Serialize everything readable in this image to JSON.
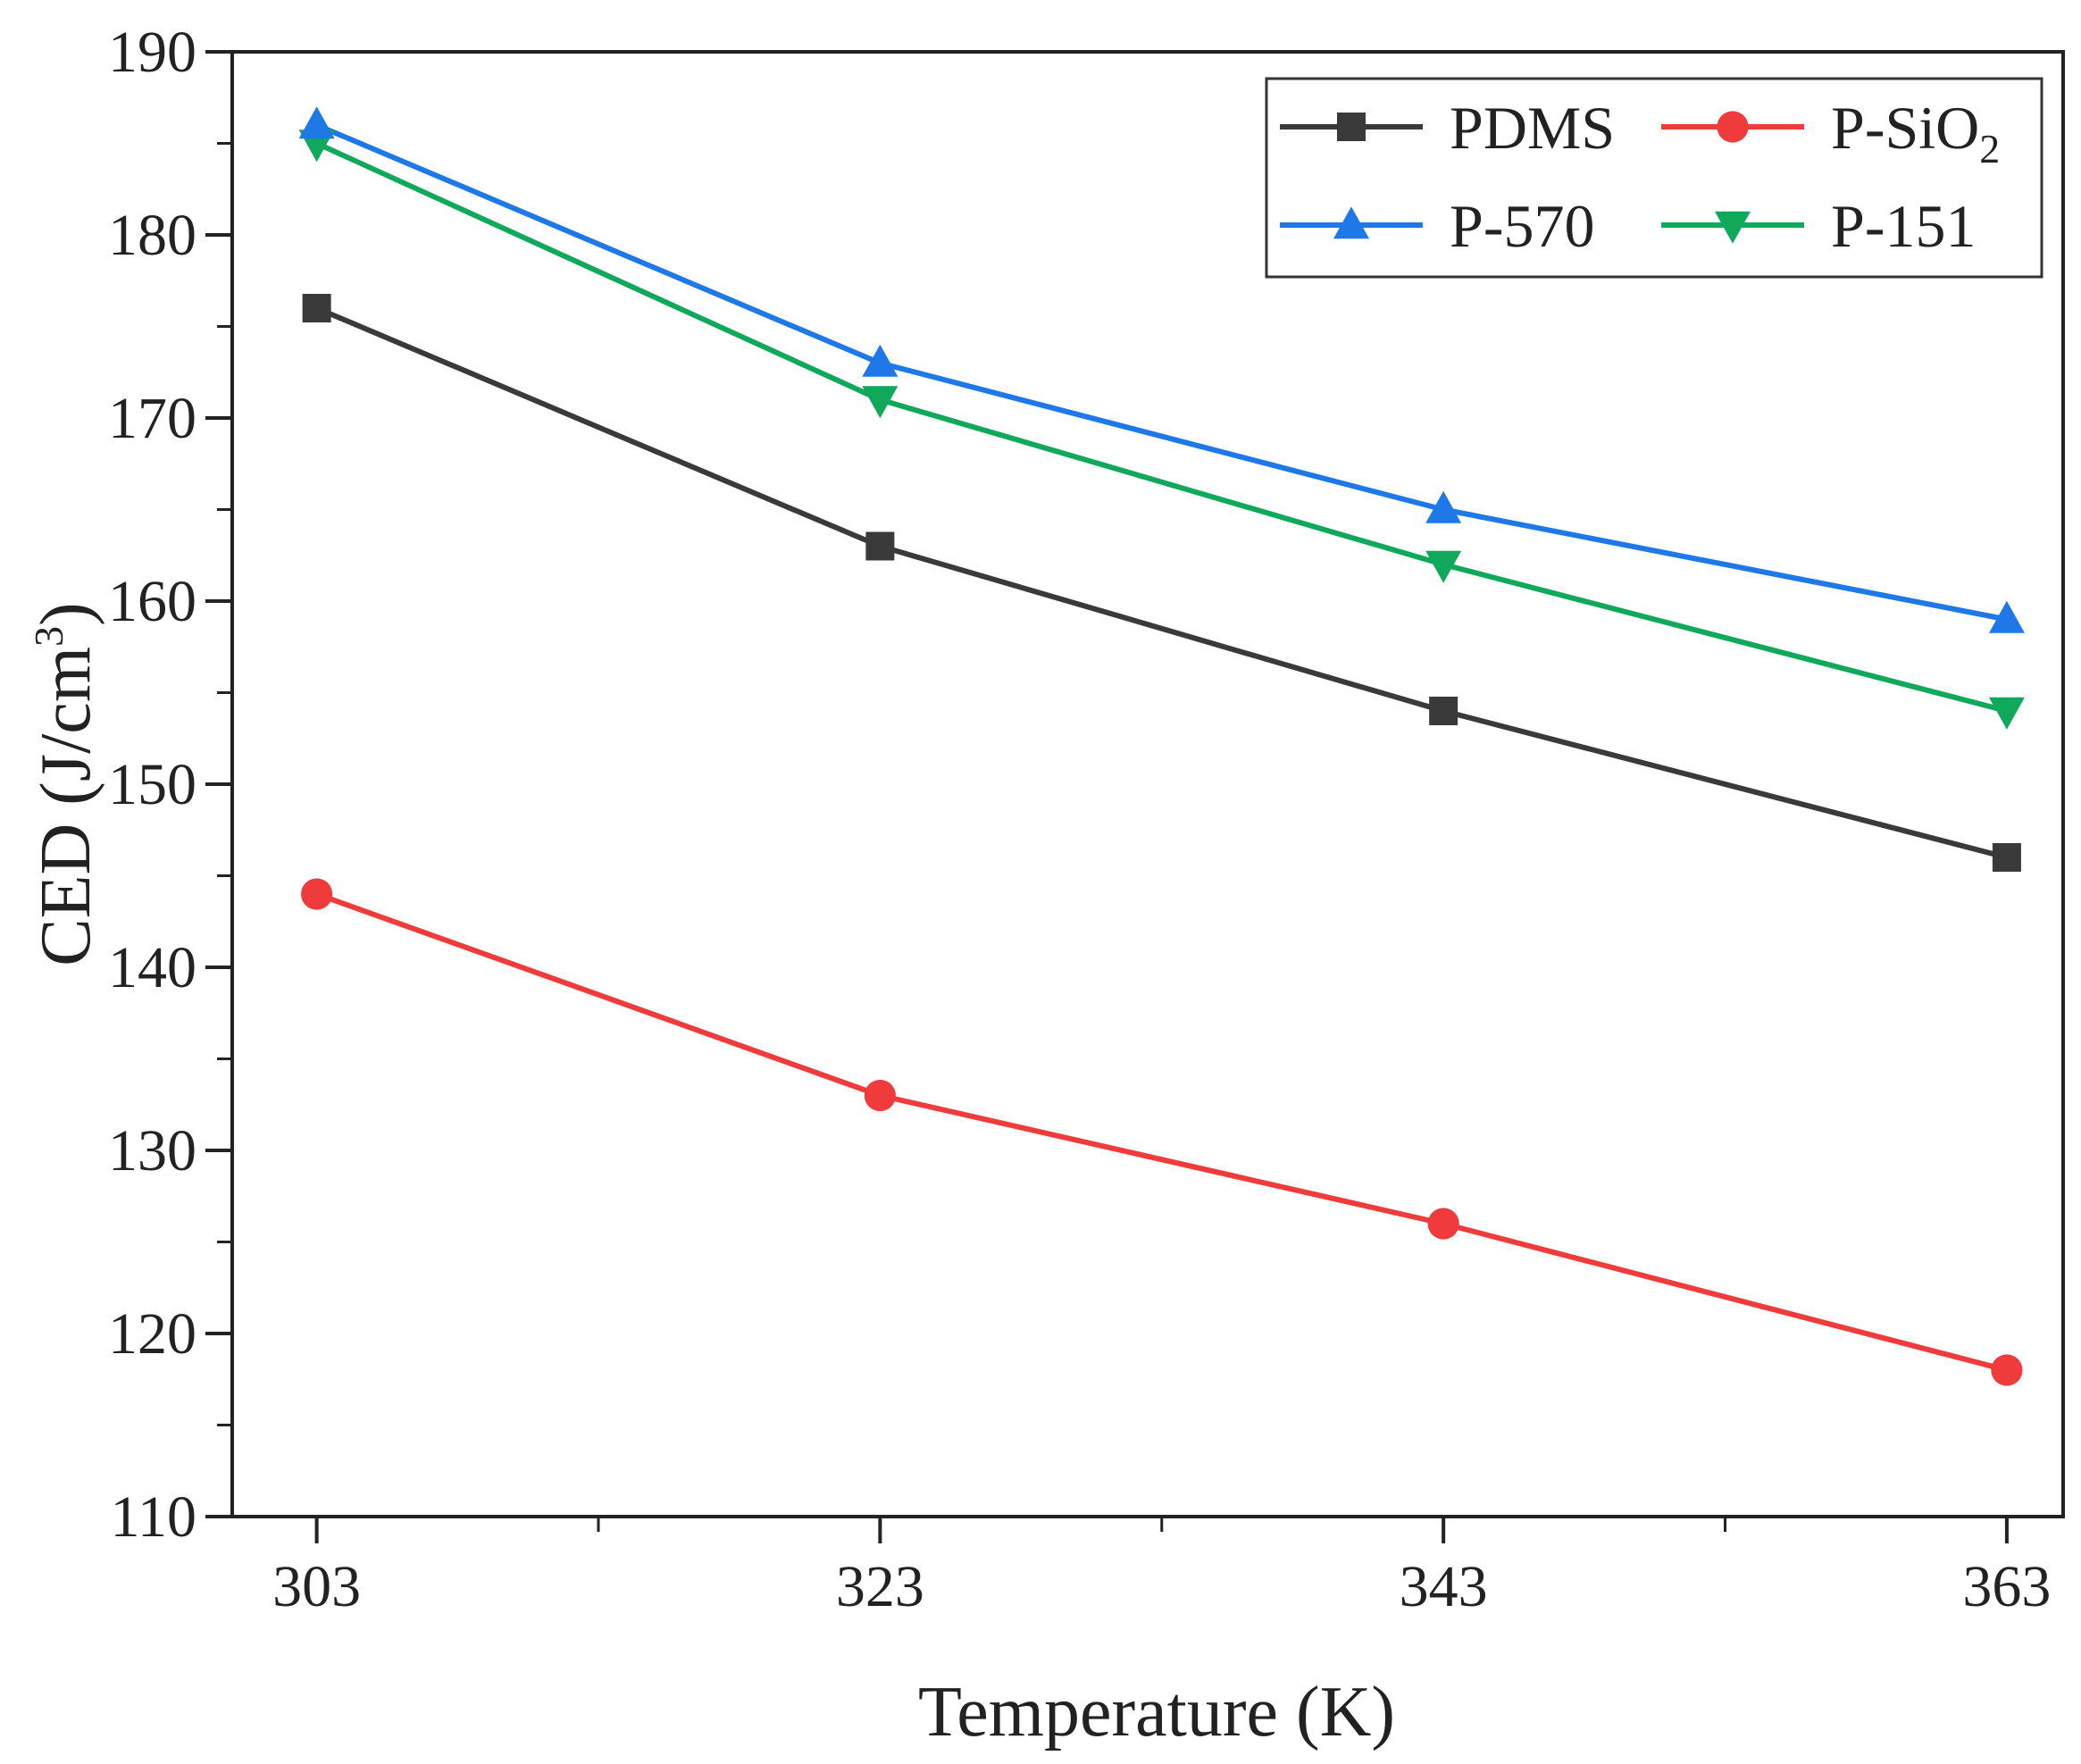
{
  "chart_data": {
    "type": "line",
    "title": "",
    "xlabel": "Temperature (K)",
    "ylabel": "CED (J/cm",
    "ylabel_superscript": "3",
    "ylabel_close": ")",
    "x": [
      303,
      323,
      343,
      363
    ],
    "x_tick_labels": [
      "303",
      "323",
      "343",
      "363"
    ],
    "xlim": [
      300,
      365
    ],
    "ylim": [
      110,
      190
    ],
    "y_ticks": [
      110,
      120,
      130,
      140,
      150,
      160,
      170,
      180,
      190
    ],
    "y_tick_labels": [
      "110",
      "120",
      "130",
      "140",
      "150",
      "160",
      "170",
      "180",
      "190"
    ],
    "grid": false,
    "legend_position": "top-right",
    "series": [
      {
        "name": "PDMS",
        "label_main": "PDMS",
        "label_sub": "",
        "color": "#3a3a3a",
        "marker": "square",
        "values": [
          176,
          163,
          154,
          146
        ]
      },
      {
        "name": "P-SiO2",
        "label_main": "P-SiO",
        "label_sub": "2",
        "color": "#ef3b3b",
        "marker": "circle",
        "values": [
          144,
          133,
          126,
          118
        ]
      },
      {
        "name": "P-570",
        "label_main": "P-570",
        "label_sub": "",
        "color": "#1f78e8",
        "marker": "triangle-up",
        "values": [
          186,
          173,
          165,
          159
        ]
      },
      {
        "name": "P-151",
        "label_main": "P-151",
        "label_sub": "",
        "color": "#10a85a",
        "marker": "triangle-down",
        "values": [
          185,
          171,
          162,
          154
        ]
      }
    ]
  }
}
